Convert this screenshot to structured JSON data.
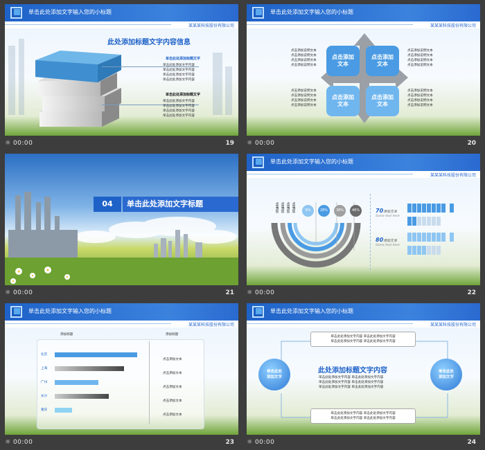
{
  "header": {
    "title": "单击此处添加文字输入您的小标题",
    "company": "某某某科技股份有限公司"
  },
  "slides": [
    {
      "num": "19",
      "time": "00:00",
      "title": "此处添加标题文字内容信息",
      "sub1": "单击此处添加标题文字",
      "lines1": [
        "单击此处添加文字内容",
        "单击此处添加文字内容",
        "单击此处添加文字内容",
        "单击此处添加文字内容"
      ],
      "sub2": "单击此处添加标题文字",
      "lines2": [
        "单击此处添加文字内容",
        "单击此处添加文字内容",
        "单击此处添加文字内容",
        "单击此处添加文字内容"
      ]
    },
    {
      "num": "20",
      "time": "00:00",
      "tiles": [
        "点击添加\n文本",
        "点击添加\n文本",
        "点击添加\n文本",
        "点击添加\n文本"
      ],
      "side": "点击添加说明文本"
    },
    {
      "num": "21",
      "time": "00:00",
      "section": "04",
      "title": "单击此处添加文字标题"
    },
    {
      "num": "22",
      "time": "00:00",
      "percents": [
        "9%",
        "28%",
        "38%",
        "46%"
      ],
      "pct1": "70",
      "pct1_text": "添加文本",
      "pct1_sub": "Some text here",
      "pct2": "80",
      "pct2_text": "添加文本",
      "pct2_sub": "Some text here"
    },
    {
      "num": "23",
      "time": "00:00",
      "col1": "添加标题",
      "col2": "添加标题",
      "cities": [
        "北京",
        "上海",
        "广州",
        "长沙",
        "重庆"
      ],
      "values": [
        0.95,
        0.8,
        0.5,
        0.62,
        0.2
      ],
      "click": "点击添加文本"
    },
    {
      "num": "24",
      "time": "00:00",
      "box": "单击此处添加文字内容  单击此处添加文字内容",
      "circle": "单击此处\n添加文字",
      "title": "此处添加标题文字内容",
      "line": "单击此处添加文字内容  单击此处添加文字内容"
    }
  ]
}
